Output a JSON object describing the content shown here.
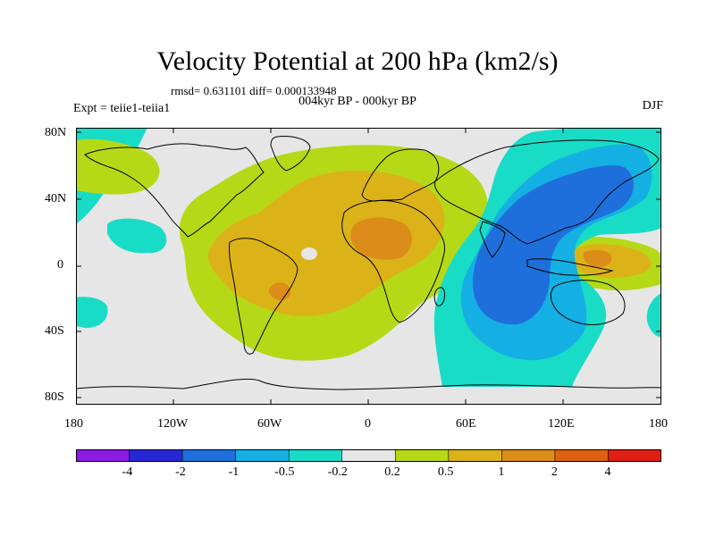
{
  "title": "Velocity Potential at 200 hPa (km2/s)",
  "stats": "rmsd= 0.631101  diff= 0.000133948",
  "period": "004kyr BP - 000kyr BP",
  "expt": "Expt = teiie1-teiia1",
  "season": "DJF",
  "y_axis_labels": [
    "80N",
    "40N",
    "0",
    "40S",
    "80S"
  ],
  "x_axis_labels": [
    "180",
    "120W",
    "60W",
    "0",
    "60E",
    "120E",
    "180"
  ],
  "colorbar": {
    "labels": [
      "-4",
      "-2",
      "-1",
      "-0.5",
      "-0.2",
      "0.2",
      "0.5",
      "1",
      "2",
      "4"
    ],
    "colors": [
      "#8c1be6",
      "#2727d6",
      "#1e6fdb",
      "#15b0e3",
      "#19dcc6",
      "#e6e6e6",
      "#b5d917",
      "#dbb318",
      "#dc8c18",
      "#de6012",
      "#e01e12"
    ]
  },
  "map": {
    "projection": "cylindrical-equidistant",
    "lon_range": [
      -180,
      180
    ],
    "lat_range": [
      -90,
      90
    ],
    "background_value_color": "#e6e6e6"
  }
}
